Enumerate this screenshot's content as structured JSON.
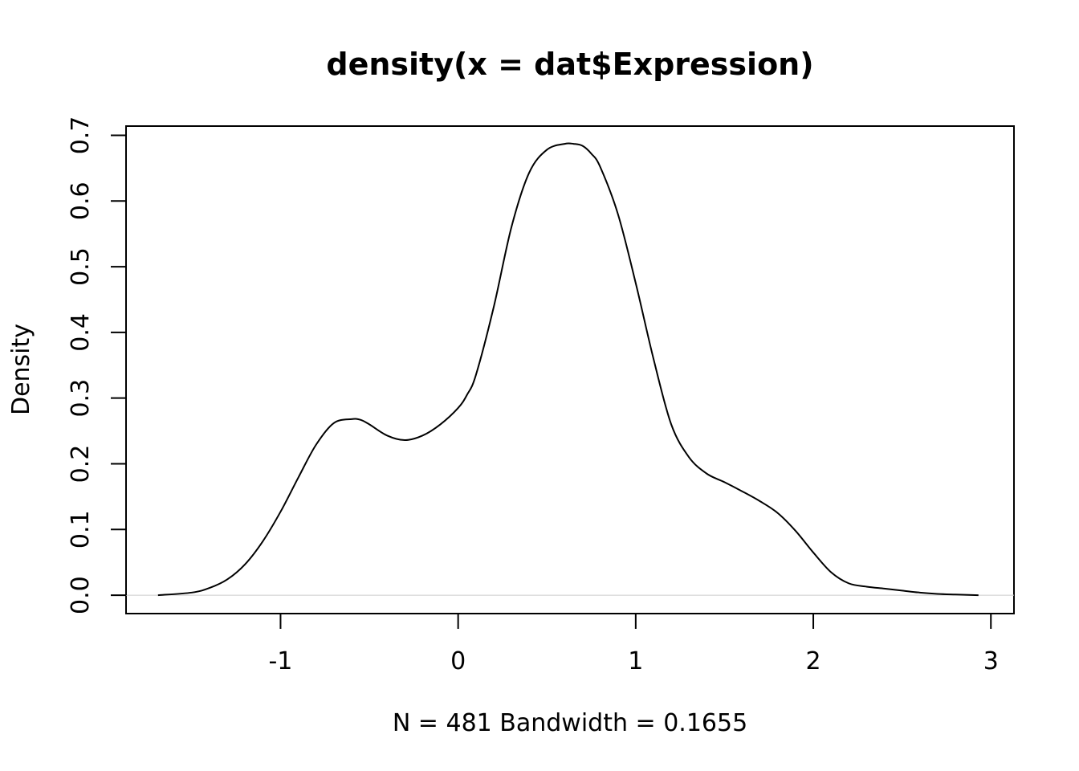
{
  "chart_data": {
    "type": "line",
    "title": "density(x = dat$Expression)",
    "xlabel": "N = 481   Bandwidth = 0.1655",
    "ylabel": "Density",
    "xlim": [
      -1.87,
      3.13
    ],
    "ylim": [
      -0.028,
      0.714
    ],
    "x_ticks": [
      -1,
      0,
      1,
      2,
      3
    ],
    "x_tick_labels": [
      "-1",
      "0",
      "1",
      "2",
      "3"
    ],
    "y_ticks": [
      0.0,
      0.1,
      0.2,
      0.3,
      0.4,
      0.5,
      0.6,
      0.7
    ],
    "y_tick_labels": [
      "0.0",
      "0.1",
      "0.2",
      "0.3",
      "0.4",
      "0.5",
      "0.6",
      "0.7"
    ],
    "baseline": 0,
    "baseline_color": "#cccccc",
    "grid": false,
    "series": [
      {
        "color": "#000000",
        "x": [
          -1.69,
          -1.5,
          -1.4,
          -1.3,
          -1.2,
          -1.1,
          -1.0,
          -0.9,
          -0.8,
          -0.7,
          -0.6,
          -0.55,
          -0.5,
          -0.4,
          -0.3,
          -0.2,
          -0.1,
          0.0,
          0.05,
          0.1,
          0.2,
          0.3,
          0.4,
          0.5,
          0.6,
          0.65,
          0.7,
          0.75,
          0.8,
          0.9,
          1.0,
          1.1,
          1.2,
          1.3,
          1.4,
          1.5,
          1.6,
          1.7,
          1.8,
          1.9,
          2.0,
          2.1,
          2.2,
          2.3,
          2.4,
          2.5,
          2.6,
          2.7,
          2.8,
          2.93
        ],
        "y": [
          0.0,
          0.004,
          0.011,
          0.024,
          0.047,
          0.082,
          0.127,
          0.179,
          0.229,
          0.262,
          0.268,
          0.267,
          0.26,
          0.243,
          0.236,
          0.243,
          0.26,
          0.285,
          0.305,
          0.335,
          0.438,
          0.56,
          0.643,
          0.678,
          0.687,
          0.687,
          0.684,
          0.672,
          0.652,
          0.58,
          0.475,
          0.36,
          0.26,
          0.21,
          0.185,
          0.172,
          0.158,
          0.143,
          0.125,
          0.098,
          0.065,
          0.035,
          0.018,
          0.013,
          0.01,
          0.007,
          0.004,
          0.002,
          0.001,
          0.0
        ]
      }
    ]
  }
}
